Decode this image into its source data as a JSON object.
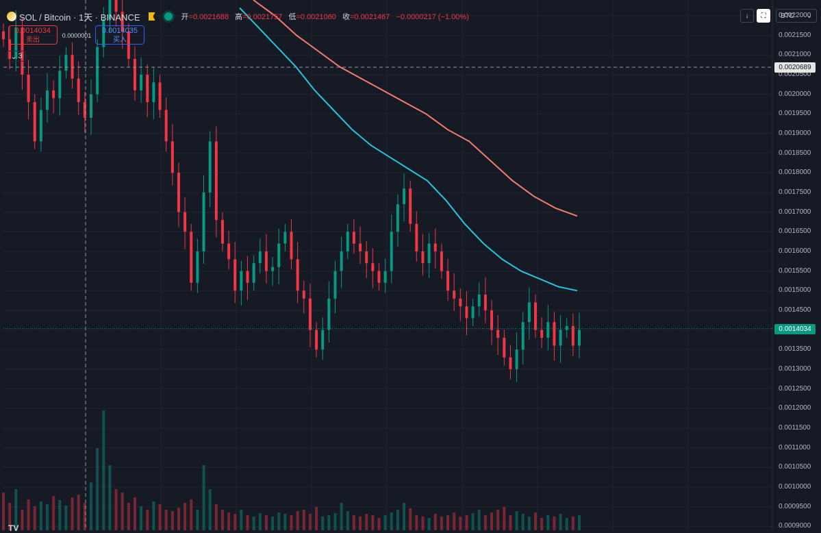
{
  "header": {
    "symbol": "SOL / Bitcoin · 1天 · BINANCE",
    "open_label": "开",
    "open_value": "=0.0021688",
    "high_label": "高",
    "high_value": "=0.0021757",
    "low_label": "低",
    "low_value": "=0.0021060",
    "close_label": "收",
    "close_value": "=0.0021467",
    "change": "−0.0000217 (−1.00%)",
    "live_color": "#089981",
    "sell_price": "0.0014034",
    "sell_label": "卖出",
    "buy_price": "0.0014035",
    "buy_label": "买入",
    "spread": "0.0000001",
    "collapsed_count": "3"
  },
  "toolbar": {
    "currency": "BTC",
    "down_icon": "arrow-down-icon",
    "frame_icon": "fullscreen-icon"
  },
  "colors": {
    "up": "#089981",
    "down": "#f23645",
    "ma_fast": "#26c6da",
    "ma_slow": "#f77c70",
    "background": "#161a25"
  },
  "chart_data": {
    "type": "candlestick",
    "title": "SOL / Bitcoin · 1天 · BINANCE",
    "ylim": [
      0.00089,
      0.00224
    ],
    "y_ticks": [
      "0.0022000",
      "0.0021500",
      "0.0021000",
      "0.0020500",
      "0.0020000",
      "0.0019500",
      "0.0019000",
      "0.0018500",
      "0.0018000",
      "0.0017500",
      "0.0017000",
      "0.0016500",
      "0.0016000",
      "0.0015500",
      "0.0015000",
      "0.0014500",
      "0.0014000",
      "0.0013500",
      "0.0013000",
      "0.0012500",
      "0.0012000",
      "0.0011500",
      "0.0011000",
      "0.0010500",
      "0.0010000",
      "0.0009500",
      "0.0009000"
    ],
    "last_price": "0.0014034",
    "crosshair_price": "0.0020689",
    "crosshair_value": 0.0020689,
    "last_value": 0.0014034,
    "ma_fast_values": [
      0.00222,
      0.00217,
      0.00212,
      0.00207,
      0.00201,
      0.00196,
      0.00191,
      0.00187,
      0.00184,
      0.00181,
      0.00178,
      0.00173,
      0.00167,
      0.00162,
      0.00158,
      0.00155,
      0.00153,
      0.00151,
      0.0015
    ],
    "ma_slow_values": [
      0.00224,
      0.0022,
      0.00215,
      0.00211,
      0.00207,
      0.00204,
      0.00201,
      0.00198,
      0.00195,
      0.00191,
      0.00188,
      0.00183,
      0.00178,
      0.00174,
      0.00171,
      0.00169
    ],
    "closes": [
      0.00214,
      0.00209,
      0.00217,
      0.00205,
      0.00198,
      0.00188,
      0.00196,
      0.00201,
      0.00199,
      0.00206,
      0.0021,
      0.00204,
      0.00198,
      0.00194,
      0.002,
      0.00212,
      0.00219,
      0.00224,
      0.00221,
      0.00216,
      0.00209,
      0.00201,
      0.00205,
      0.00198,
      0.00203,
      0.00196,
      0.00188,
      0.0018,
      0.0017,
      0.00165,
      0.00152,
      0.0016,
      0.00175,
      0.00188,
      0.00168,
      0.00162,
      0.00158,
      0.0015,
      0.00155,
      0.00152,
      0.00157,
      0.0016,
      0.00155,
      0.00156,
      0.00162,
      0.00165,
      0.00158,
      0.0015,
      0.00148,
      0.0014,
      0.00135,
      0.0014,
      0.00148,
      0.00155,
      0.0016,
      0.00165,
      0.00162,
      0.0016,
      0.00157,
      0.00155,
      0.00152,
      0.00155,
      0.00165,
      0.00172,
      0.00176,
      0.00167,
      0.0016,
      0.00157,
      0.00162,
      0.0016,
      0.00155,
      0.0015,
      0.00148,
      0.00146,
      0.00143,
      0.00146,
      0.00149,
      0.00145,
      0.0014,
      0.00138,
      0.00133,
      0.0013,
      0.00135,
      0.00142,
      0.00147,
      0.0014,
      0.00138,
      0.00142,
      0.00136,
      0.0014,
      0.00141,
      0.00136,
      0.0014
    ],
    "volumes": [
      55,
      40,
      60,
      30,
      45,
      35,
      42,
      38,
      50,
      44,
      36,
      48,
      52,
      40,
      70,
      120,
      175,
      95,
      60,
      55,
      40,
      48,
      35,
      30,
      42,
      38,
      30,
      28,
      33,
      40,
      45,
      30,
      95,
      60,
      38,
      30,
      26,
      24,
      30,
      22,
      20,
      25,
      22,
      20,
      26,
      24,
      22,
      28,
      30,
      24,
      34,
      20,
      22,
      25,
      40,
      28,
      22,
      20,
      24,
      22,
      18,
      22,
      26,
      30,
      40,
      32,
      22,
      20,
      18,
      24,
      20,
      22,
      26,
      20,
      22,
      25,
      30,
      22,
      26,
      30,
      34,
      22,
      28,
      24,
      20,
      26,
      18,
      22,
      20,
      24,
      18,
      20,
      22
    ]
  }
}
